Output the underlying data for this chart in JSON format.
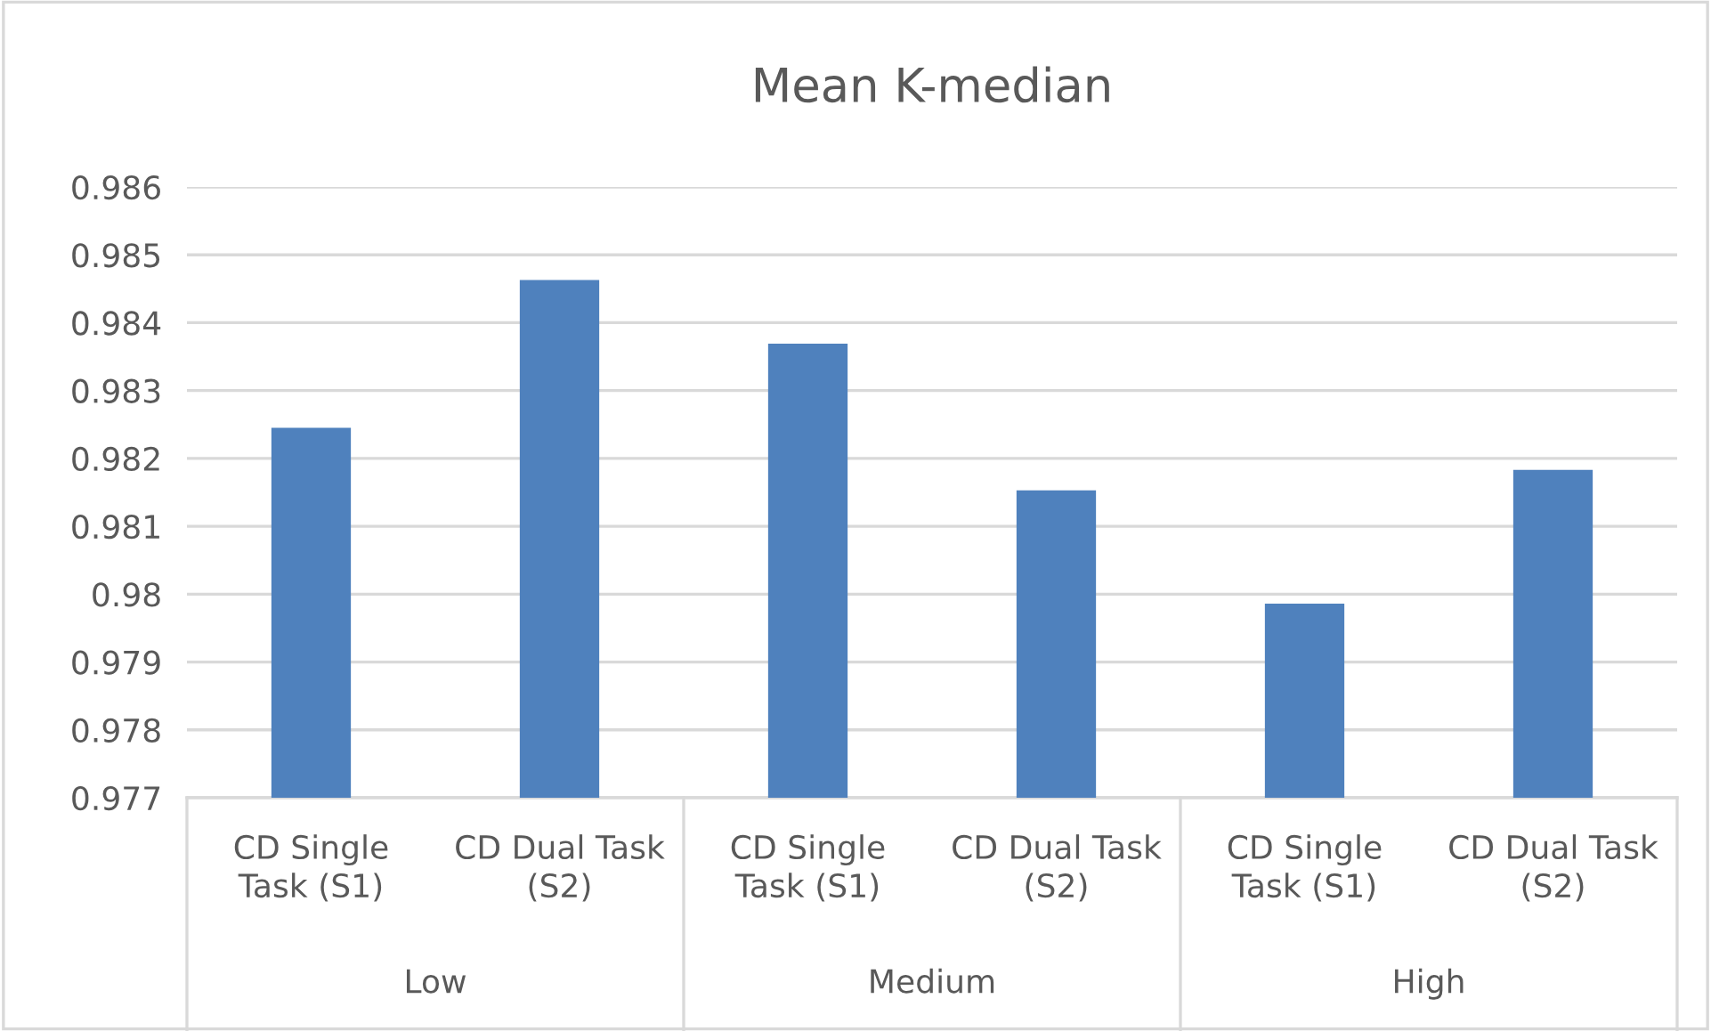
{
  "chart_data": {
    "type": "bar",
    "title": "Mean K-median",
    "categories": [
      "CD Single Task (S1)",
      "CD Dual Task (S2)",
      "CD Single Task (S1)",
      "CD Dual Task (S2)",
      "CD Single Task (S1)",
      "CD Dual Task (S2)"
    ],
    "series": [
      {
        "color": "#4f81bd",
        "values": [
          0.98245,
          0.98463,
          0.98369,
          0.98153,
          0.97986,
          0.98183
        ]
      }
    ],
    "annotations": [
      "Low",
      "Medium",
      "High"
    ],
    "ylim": [
      0.977,
      0.986
    ],
    "yticks": [
      0.977,
      0.978,
      0.979,
      0.98,
      0.981,
      0.982,
      0.983,
      0.984,
      0.985,
      0.986
    ],
    "grid": "y",
    "legend": false
  }
}
